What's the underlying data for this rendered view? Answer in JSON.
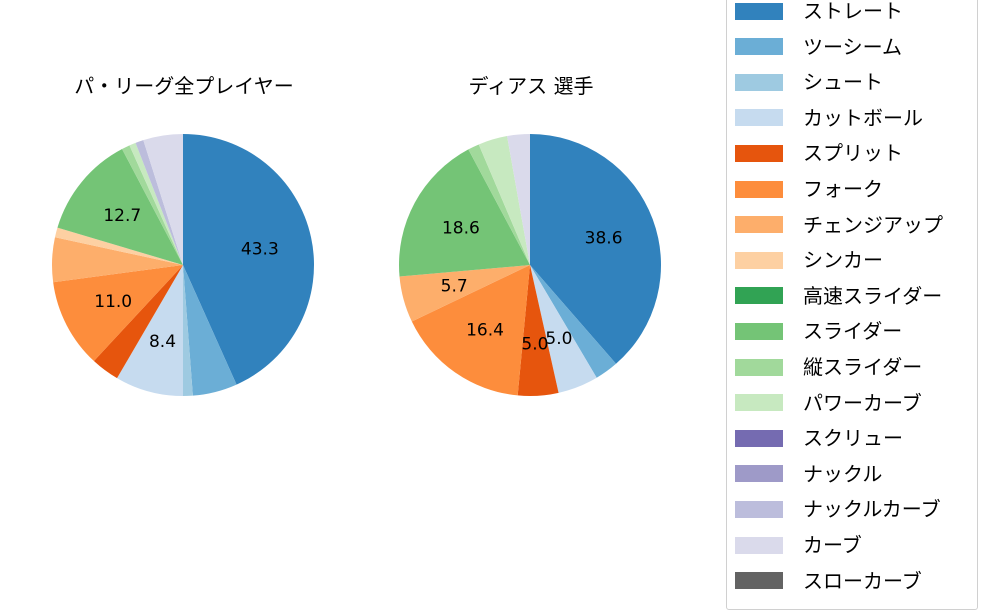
{
  "chart_data": [
    {
      "type": "pie",
      "title": "パ・リーグ全プレイヤー",
      "categories": [
        "ストレート",
        "ツーシーム",
        "シュート",
        "カットボール",
        "スプリット",
        "フォーク",
        "チェンジアップ",
        "シンカー",
        "高速スライダー",
        "スライダー",
        "縦スライダー",
        "パワーカーブ",
        "スクリュー",
        "ナックル",
        "ナックルカーブ",
        "カーブ",
        "スローカーブ"
      ],
      "values": [
        43.3,
        5.5,
        1.2,
        8.4,
        3.5,
        11.0,
        5.5,
        1.2,
        0,
        12.7,
        1.0,
        0.8,
        0,
        0,
        1.0,
        4.9,
        0
      ],
      "labels_shown": {
        "ストレート": "43.3",
        "カットボール": "8.4",
        "フォーク": "11.0",
        "スライダー": "12.7"
      },
      "startangle": 90,
      "direction": "clockwise"
    },
    {
      "type": "pie",
      "title": "ディアス  選手",
      "categories": [
        "ストレート",
        "ツーシーム",
        "シュート",
        "カットボール",
        "スプリット",
        "フォーク",
        "チェンジアップ",
        "シンカー",
        "高速スライダー",
        "スライダー",
        "縦スライダー",
        "パワーカーブ",
        "スクリュー",
        "ナックル",
        "ナックルカーブ",
        "カーブ",
        "スローカーブ"
      ],
      "values": [
        38.6,
        2.9,
        0,
        5.0,
        5.0,
        16.4,
        5.7,
        0,
        0,
        18.6,
        1.4,
        3.6,
        0,
        0,
        0,
        2.8,
        0
      ],
      "labels_shown": {
        "ストレート": "38.6",
        "カットボール": "5.0",
        "スプリット": "5.0",
        "フォーク": "16.4",
        "チェンジアップ": "5.7",
        "スライダー": "18.6"
      },
      "startangle": 90,
      "direction": "clockwise"
    }
  ],
  "titles": {
    "left": "パ・リーグ全プレイヤー",
    "right": "ディアス  選手"
  },
  "legend": {
    "items": [
      {
        "label": "ストレート",
        "color": "#3182bd"
      },
      {
        "label": "ツーシーム",
        "color": "#6baed6"
      },
      {
        "label": "シュート",
        "color": "#9ecae1"
      },
      {
        "label": "カットボール",
        "color": "#c6dbef"
      },
      {
        "label": "スプリット",
        "color": "#e6550d"
      },
      {
        "label": "フォーク",
        "color": "#fd8d3c"
      },
      {
        "label": "チェンジアップ",
        "color": "#fdae6b"
      },
      {
        "label": "シンカー",
        "color": "#fdd0a2"
      },
      {
        "label": "高速スライダー",
        "color": "#31a354"
      },
      {
        "label": "スライダー",
        "color": "#74c476"
      },
      {
        "label": "縦スライダー",
        "color": "#a1d99b"
      },
      {
        "label": "パワーカーブ",
        "color": "#c7e9c0"
      },
      {
        "label": "スクリュー",
        "color": "#756bb1"
      },
      {
        "label": "ナックル",
        "color": "#9e9ac8"
      },
      {
        "label": "ナックルカーブ",
        "color": "#bcbddc"
      },
      {
        "label": "カーブ",
        "color": "#dadaeb"
      },
      {
        "label": "スローカーブ",
        "color": "#636363"
      }
    ]
  }
}
